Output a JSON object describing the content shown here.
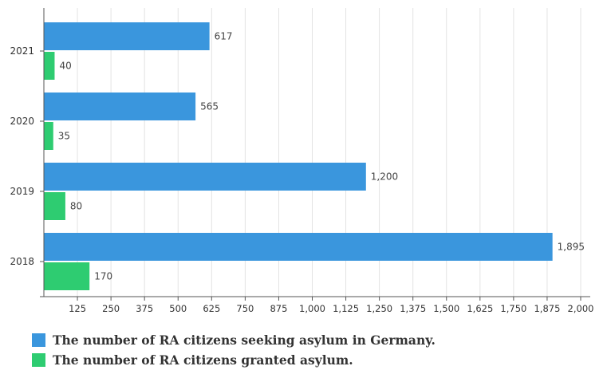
{
  "chart_data": {
    "type": "bar",
    "orientation": "horizontal",
    "categories": [
      "2021",
      "2020",
      "2019",
      "2018"
    ],
    "series": [
      {
        "name": "The number of RA citizens seeking asylum in Germany.",
        "values": [
          617,
          565,
          1200,
          1895
        ],
        "color": "#3a96dd"
      },
      {
        "name": "The number of RA citizens granted asylum.",
        "values": [
          40,
          35,
          80,
          170
        ],
        "color": "#2ecc71"
      }
    ],
    "value_labels": [
      [
        "617",
        "565",
        "1,200",
        "1,895"
      ],
      [
        "40",
        "35",
        "80",
        "170"
      ]
    ],
    "xlim": [
      0,
      2000
    ],
    "xticks": [
      125,
      250,
      375,
      500,
      625,
      750,
      875,
      1000,
      1125,
      1250,
      1375,
      1500,
      1625,
      1750,
      1875,
      2000
    ],
    "xtick_labels": [
      "125",
      "250",
      "375",
      "500",
      "625",
      "750",
      "875",
      "1,000",
      "1,125",
      "1,250",
      "1,375",
      "1,500",
      "1,625",
      "1,750",
      "1,875",
      "2,000"
    ],
    "grid": true,
    "legend_position": "bottom-left",
    "title": "",
    "xlabel": "",
    "ylabel": ""
  }
}
